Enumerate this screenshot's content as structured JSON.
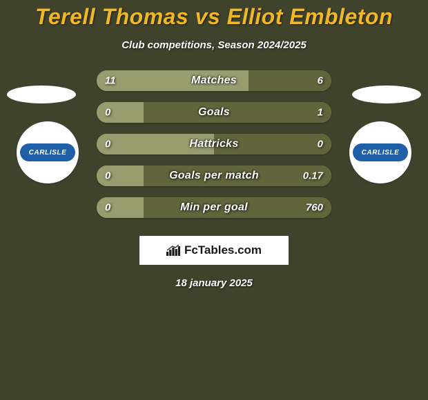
{
  "background_color": "#3f432c",
  "title": {
    "text": "Terell Thomas vs Elliot Embleton",
    "color": "#f0b828",
    "fontsize": 32
  },
  "subtitle": "Club competitions, Season 2024/2025",
  "player_left": {
    "name": "Terell Thomas",
    "club_name": "CARLISLE",
    "club_color": "#1f5fa8"
  },
  "player_right": {
    "name": "Elliot Embleton",
    "club_name": "CARLISLE",
    "club_color": "#1f5fa8"
  },
  "stats": [
    {
      "label": "Matches",
      "left_value": "11",
      "right_value": "6",
      "left_num": 11,
      "right_num": 6,
      "left_color": "#989d6f",
      "right_color": "#61653b",
      "left_pct": 64.7,
      "right_pct": 35.3
    },
    {
      "label": "Goals",
      "left_value": "0",
      "right_value": "1",
      "left_num": 0,
      "right_num": 1,
      "left_color": "#989d6f",
      "right_color": "#61653b",
      "left_pct": 20.0,
      "right_pct": 80.0
    },
    {
      "label": "Hattricks",
      "left_value": "0",
      "right_value": "0",
      "left_num": 0,
      "right_num": 0,
      "left_color": "#989d6f",
      "right_color": "#61653b",
      "left_pct": 50.0,
      "right_pct": 50.0
    },
    {
      "label": "Goals per match",
      "left_value": "0",
      "right_value": "0.17",
      "left_num": 0,
      "right_num": 0.17,
      "left_color": "#989d6f",
      "right_color": "#61653b",
      "left_pct": 20.0,
      "right_pct": 80.0
    },
    {
      "label": "Min per goal",
      "left_value": "0",
      "right_value": "760",
      "left_num": 0,
      "right_num": 760,
      "left_color": "#989d6f",
      "right_color": "#61653b",
      "left_pct": 20.0,
      "right_pct": 80.0
    }
  ],
  "row_bg_color": "#989d6f",
  "brand": "FcTables.com",
  "date": "18 january 2025"
}
